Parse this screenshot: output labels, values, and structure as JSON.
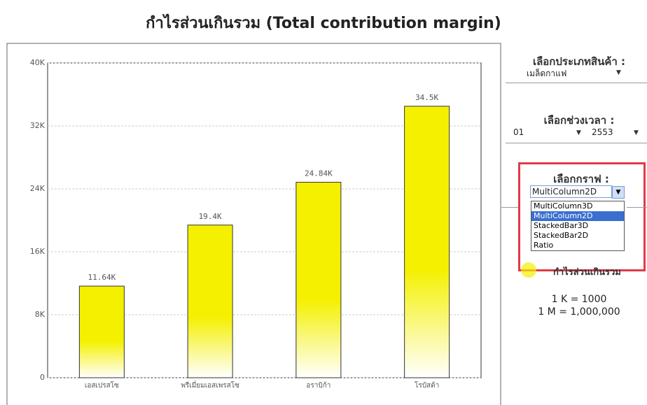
{
  "chart_data": {
    "type": "bar",
    "title": "กำไรส่วนเกินรวม (Total contribution margin)",
    "categories": [
      "เอสเปรสโซ",
      "พรีเมี่ยมเอสเพรสโซ",
      "อราบิก้า",
      "โรบัสต้า"
    ],
    "series": [
      {
        "name": "กำไรส่วนเกินรวม",
        "color": "#f4f000",
        "values": [
          11640,
          19400,
          24840,
          34500
        ],
        "value_labels": [
          "11.64K",
          "19.4K",
          "24.84K",
          "34.5K"
        ]
      }
    ],
    "ylim": [
      0,
      40000
    ],
    "yticks": [
      0,
      {
        "value": 8000,
        "label": "8K"
      },
      {
        "value": 16000,
        "label": "16K"
      },
      {
        "value": 24000,
        "label": "24K"
      },
      {
        "value": 32000,
        "label": "32K"
      },
      {
        "value": 40000,
        "label": "40K"
      }
    ],
    "grid": true
  },
  "controls": {
    "product": {
      "label": "เลือกประเภทสินค้า :",
      "selected": "เมล็ดกาแฟ"
    },
    "period": {
      "label": "เลือกช่วงเวลา :",
      "month": "01",
      "year": "2553"
    },
    "graph": {
      "label": "เลือกกราฟ :",
      "selected": "MultiColumn2D",
      "options": [
        "MultiColumn3D",
        "MultiColumn2D",
        "StackedBar3D",
        "StackedBar2D",
        "Ratio"
      ]
    },
    "notes": [
      "1 K = 1000",
      "1 M = 1,000,000"
    ]
  }
}
